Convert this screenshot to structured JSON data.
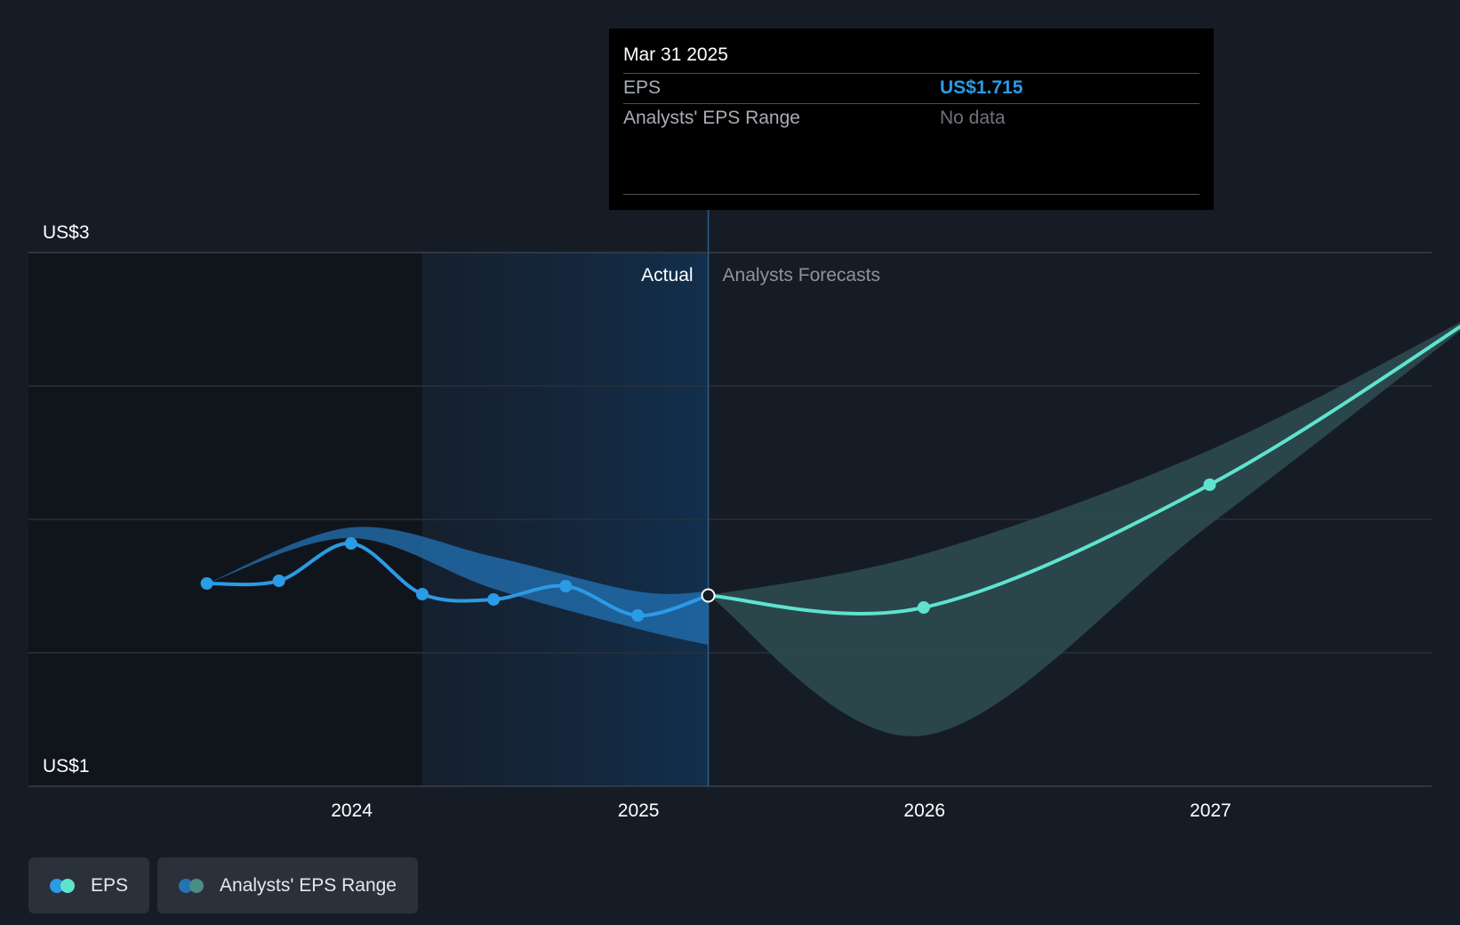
{
  "tooltip": {
    "date": "Mar 31 2025",
    "eps_label": "EPS",
    "eps_value": "US$1.715",
    "range_label": "Analysts' EPS Range",
    "range_value": "No data"
  },
  "legend": {
    "eps_label": "EPS",
    "range_label": "Analysts' EPS Range"
  },
  "colors": {
    "background": "#161c25",
    "eps_actual": "#2b9be6",
    "eps_forecast": "#5fe3cf",
    "range_actual": "#2373b5",
    "range_forecast": "#2e4d52",
    "actual_shade": "#13263c",
    "tooltip_value": "#2b9be6"
  },
  "chart_data": {
    "type": "line",
    "y_ticks": [
      "US$3",
      "US$1"
    ],
    "x_ticks": [
      "2024",
      "2025",
      "2026",
      "2027"
    ],
    "ylim": [
      1,
      3
    ],
    "grid": true,
    "section_labels": {
      "actual": "Actual",
      "forecast": "Analysts Forecasts"
    },
    "series": [
      {
        "name": "EPS",
        "segment": "actual",
        "x": [
          "2023-06-30",
          "2023-09-30",
          "2023-12-31",
          "2024-03-31",
          "2024-06-30",
          "2024-09-30",
          "2024-12-31",
          "2025-03-31"
        ],
        "values": [
          1.76,
          1.77,
          1.91,
          1.72,
          1.7,
          1.75,
          1.64,
          1.715
        ]
      },
      {
        "name": "EPS",
        "segment": "forecast",
        "x": [
          "2025-03-31",
          "2025-12-31",
          "2026-12-31",
          "2027-12-31"
        ],
        "values": [
          1.715,
          1.67,
          2.13,
          2.81
        ]
      },
      {
        "name": "Analysts' EPS Range",
        "segment": "actual",
        "x": [
          "2023-06-30",
          "2023-12-31",
          "2024-06-30",
          "2024-12-31",
          "2025-03-31"
        ],
        "high": [
          1.76,
          1.97,
          1.86,
          1.73,
          1.73
        ],
        "low": [
          1.76,
          1.93,
          1.74,
          1.59,
          1.53
        ]
      },
      {
        "name": "Analysts' EPS Range",
        "segment": "forecast",
        "x": [
          "2025-03-31",
          "2025-12-31",
          "2026-12-31",
          "2027-12-31"
        ],
        "high": [
          1.715,
          1.87,
          2.26,
          2.81
        ],
        "low": [
          1.715,
          1.19,
          1.98,
          2.81
        ]
      }
    ]
  }
}
